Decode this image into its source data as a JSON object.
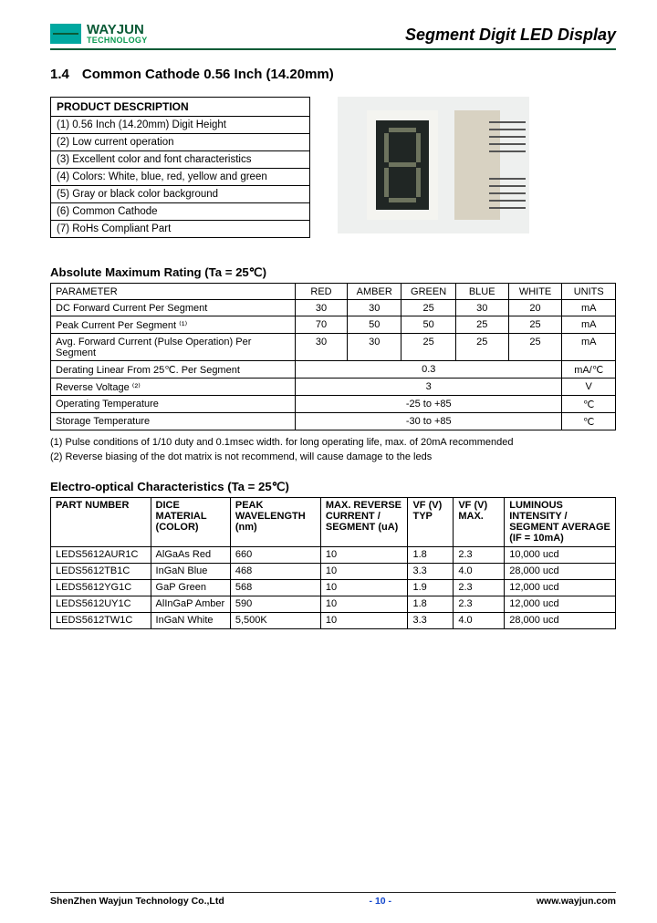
{
  "header": {
    "logo_line1": "WAYJUN",
    "logo_line2": "TECHNOLOGY",
    "doc_title": "Segment Digit LED Display"
  },
  "section": {
    "number": "1.4",
    "title": "Common Cathode 0.56 Inch (14.20mm)"
  },
  "product_description": {
    "heading": "PRODUCT DESCRIPTION",
    "items": [
      "(1) 0.56 Inch (14.20mm) Digit Height",
      "(2) Low current operation",
      "(3) Excellent color and font characteristics",
      "(4) Colors: White, blue, red, yellow and green",
      "(5) Gray or black color background",
      "(6) Common Cathode",
      "(7) RoHs Compliant Part"
    ]
  },
  "amr": {
    "title": "Absolute Maximum Rating (Ta = 25℃)",
    "columns": [
      "PARAMETER",
      "RED",
      "AMBER",
      "GREEN",
      "BLUE",
      "WHITE",
      "UNITS"
    ],
    "rows": [
      {
        "param": "DC Forward Current Per Segment",
        "vals": [
          "30",
          "30",
          "25",
          "30",
          "20"
        ],
        "units": "mA"
      },
      {
        "param": "Peak Current Per Segment ⁽¹⁾",
        "vals": [
          "70",
          "50",
          "50",
          "25",
          "25"
        ],
        "units": "mA"
      },
      {
        "param": "Avg. Forward Current (Pulse Operation) Per Segment",
        "vals": [
          "30",
          "30",
          "25",
          "25",
          "25"
        ],
        "units": "mA"
      },
      {
        "param": "Derating Linear From 25℃. Per Segment",
        "span5": "0.3",
        "units": "mA/℃"
      },
      {
        "param": "Reverse Voltage ⁽²⁾",
        "span5": "3",
        "units": "V"
      },
      {
        "param": "Operating Temperature",
        "span5": "-25 to +85",
        "units": "℃"
      },
      {
        "param": "Storage Temperature",
        "span5": "-30 to +85",
        "units": "℃"
      }
    ],
    "note1": "(1) Pulse conditions of 1/10 duty and 0.1msec width. for long operating life, max. of 20mA recommended",
    "note2": "(2) Reverse biasing of the dot matrix is not recommend, will cause damage to the leds"
  },
  "eo": {
    "title": "Electro-optical Characteristics (Ta = 25℃)",
    "columns": [
      "PART NUMBER",
      "DICE MATERIAL (COLOR)",
      "PEAK WAVELENGTH (nm)",
      "MAX. REVERSE CURRENT / SEGMENT (uA)",
      "VF (V) TYP",
      "VF (V) MAX.",
      "LUMINOUS INTENSITY / SEGMENT AVERAGE (IF = 10mA)"
    ],
    "rows": [
      [
        "LEDS5612AUR1C",
        "AlGaAs Red",
        "660",
        "10",
        "1.8",
        "2.3",
        "10,000 ucd"
      ],
      [
        "LEDS5612TB1C",
        "InGaN Blue",
        "468",
        "10",
        "3.3",
        "4.0",
        "28,000 ucd"
      ],
      [
        "LEDS5612YG1C",
        "GaP Green",
        "568",
        "10",
        "1.9",
        "2.3",
        "12,000 ucd"
      ],
      [
        "LEDS5612UY1C",
        "AlInGaP Amber",
        "590",
        "10",
        "1.8",
        "2.3",
        "12,000 ucd"
      ],
      [
        "LEDS5612TW1C",
        "InGaN White",
        "5,500K",
        "10",
        "3.3",
        "4.0",
        "28,000 ucd"
      ]
    ]
  },
  "footer": {
    "left": "ShenZhen Wayjun Technology Co.,Ltd",
    "center": "- 10 -",
    "right": "www.wayjun.com"
  },
  "colors": {
    "brand_green": "#0a5a36",
    "accent_teal": "#00a8a0",
    "link_blue": "#1146cc"
  }
}
